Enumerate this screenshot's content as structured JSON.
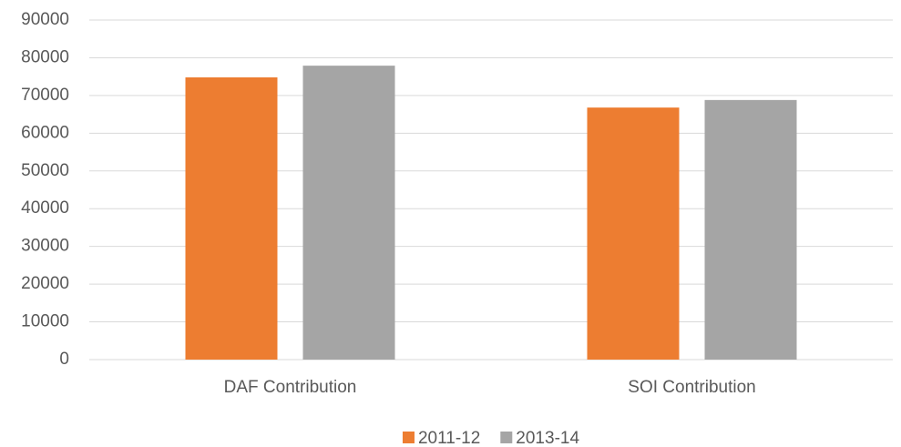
{
  "chart_data": {
    "type": "bar",
    "categories": [
      "DAF Contribution",
      "SOI Contribution"
    ],
    "series": [
      {
        "name": "2011-12",
        "color": "#ed7d31",
        "values": [
          74800,
          66800
        ]
      },
      {
        "name": "2013-14",
        "color": "#a5a5a5",
        "values": [
          77900,
          68800
        ]
      }
    ],
    "ylim": [
      0,
      90000
    ],
    "yticks": [
      0,
      10000,
      20000,
      30000,
      40000,
      50000,
      60000,
      70000,
      80000,
      90000
    ],
    "grid": true,
    "legend": "bottom"
  }
}
